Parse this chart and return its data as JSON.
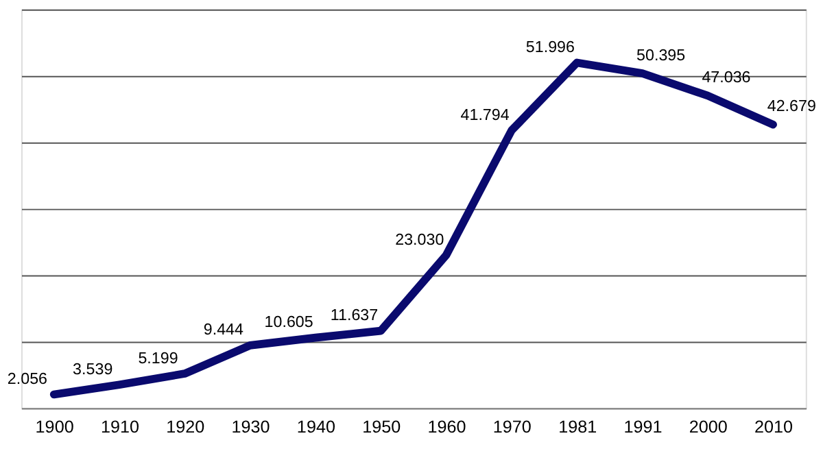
{
  "chart_data": {
    "type": "line",
    "categories": [
      "1900",
      "1910",
      "1920",
      "1930",
      "1940",
      "1950",
      "1960",
      "1970",
      "1981",
      "1991",
      "2000",
      "2010"
    ],
    "series": [
      {
        "color": "#0a0a6e",
        "values": [
          2.056,
          3.539,
          5.199,
          9.444,
          10.605,
          11.637,
          23.03,
          41.794,
          51.996,
          50.395,
          47.036,
          42.679
        ],
        "value_labels": [
          "2.056",
          "3.539",
          "5.199",
          "9.444",
          "10.605",
          "11.637",
          "23.030",
          "41.794",
          "51.996",
          "50.395",
          "47.036",
          "42.679"
        ]
      }
    ],
    "ylim": [
      0,
      60
    ],
    "yticks": [
      0,
      10,
      20,
      30,
      40,
      50,
      60
    ],
    "grid": "y",
    "tick_labels": "x",
    "marker": "none",
    "line_style": "solid"
  }
}
